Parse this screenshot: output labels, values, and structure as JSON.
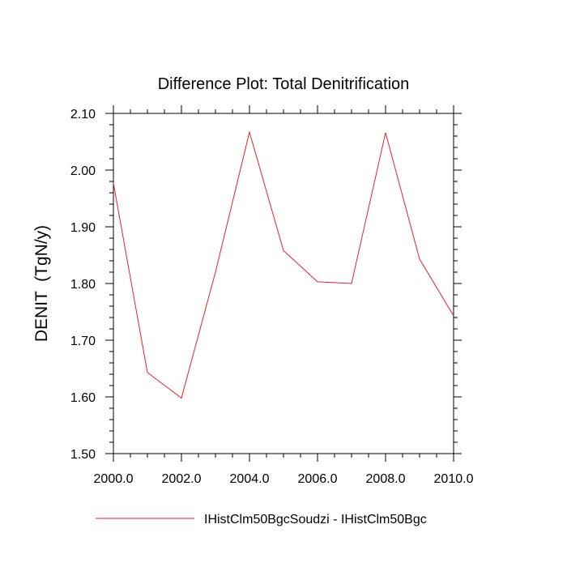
{
  "chart_data": {
    "type": "line",
    "title": "Difference Plot: Total Denitrification",
    "xlabel": "",
    "ylabel": "DENIT  (TgN/y)",
    "xlim": [
      2000,
      2010
    ],
    "ylim": [
      1.5,
      2.1
    ],
    "x_ticks": [
      "2000.0",
      "2002.0",
      "2004.0",
      "2006.0",
      "2008.0",
      "2010.0"
    ],
    "x_tick_values": [
      2000,
      2002,
      2004,
      2006,
      2008,
      2010
    ],
    "y_ticks": [
      "1.50",
      "1.60",
      "1.70",
      "1.80",
      "1.90",
      "2.00",
      "2.10"
    ],
    "y_tick_values": [
      1.5,
      1.6,
      1.7,
      1.8,
      1.9,
      2.0,
      2.1
    ],
    "grid": false,
    "legend_position": "bottom",
    "series": [
      {
        "name": "IHistClm50BgcSoudzi - IHistClm50Bgc",
        "color": "#e8202a",
        "x": [
          2000,
          2001,
          2002,
          2003,
          2004,
          2005,
          2006,
          2007,
          2008,
          2009,
          2010
        ],
        "values": [
          1.977,
          1.643,
          1.598,
          1.82,
          2.067,
          1.858,
          1.803,
          1.8,
          2.066,
          1.843,
          1.743
        ]
      }
    ]
  }
}
